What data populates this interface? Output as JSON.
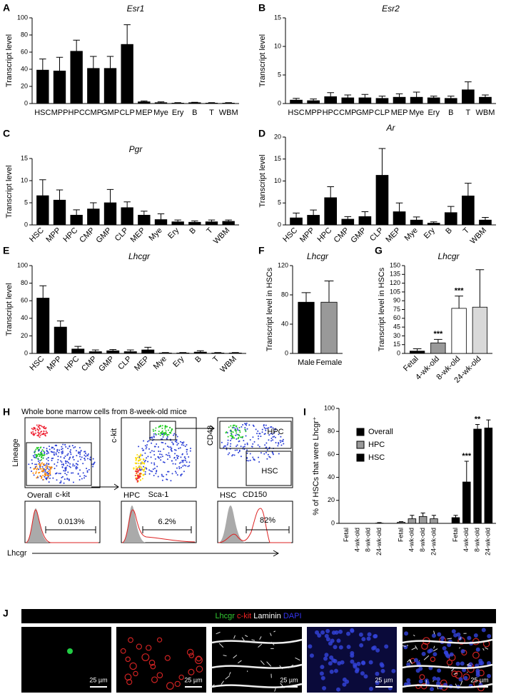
{
  "chart_data": [
    {
      "type": "bar",
      "panel": "A",
      "title": "Esr1",
      "y_label": "Transcript level",
      "color": "#000000",
      "categories": [
        "HSC",
        "MPP",
        "HPC",
        "CMP",
        "GMP",
        "CLP",
        "MEP",
        "Mye",
        "Ery",
        "B",
        "T",
        "WBM"
      ],
      "values": [
        39,
        38,
        61,
        41,
        41,
        69,
        2,
        1,
        0.5,
        1,
        0.5,
        0.5
      ],
      "errors": [
        13,
        16,
        13,
        14,
        14,
        23,
        1,
        1,
        0.5,
        0.5,
        0.5,
        0.5
      ],
      "ylim": [
        0,
        100
      ],
      "yticks": [
        0,
        20,
        40,
        60,
        80,
        100
      ]
    },
    {
      "type": "bar",
      "panel": "B",
      "title": "Esr2",
      "y_label": "Transcript level",
      "color": "#000000",
      "categories": [
        "HSC",
        "MPP",
        "HPC",
        "CMP",
        "GMP",
        "CLP",
        "MEP",
        "Mye",
        "Ery",
        "B",
        "T",
        "WBM"
      ],
      "values": [
        0.6,
        0.5,
        1.2,
        1.0,
        1.0,
        0.9,
        1.1,
        1.1,
        1.0,
        0.9,
        2.4,
        1.1
      ],
      "errors": [
        0.3,
        0.3,
        0.7,
        0.5,
        0.6,
        0.4,
        0.6,
        0.9,
        0.3,
        0.4,
        1.4,
        0.4
      ],
      "ylim": [
        0,
        15
      ],
      "yticks": [
        0,
        5,
        10,
        15
      ]
    },
    {
      "type": "bar",
      "panel": "C",
      "title": "Pgr",
      "y_label": "Transcript level",
      "color": "#000000",
      "categories": [
        "HSC",
        "MPP",
        "HPC",
        "CMP",
        "GMP",
        "CLP",
        "MEP",
        "Mye",
        "Ery",
        "B",
        "T",
        "WBM"
      ],
      "values": [
        6.6,
        5.6,
        2.2,
        3.6,
        5.0,
        3.9,
        2.2,
        1.2,
        0.7,
        0.6,
        0.7,
        0.8
      ],
      "errors": [
        3.6,
        2.3,
        1.2,
        1.4,
        3.0,
        1.3,
        0.9,
        1.3,
        0.4,
        0.3,
        0.4,
        0.3
      ],
      "ylim": [
        0,
        15
      ],
      "yticks": [
        0,
        5,
        10,
        15
      ]
    },
    {
      "type": "bar",
      "panel": "D",
      "title": "Ar",
      "y_label": "Transcript level",
      "color": "#000000",
      "categories": [
        "HSC",
        "MPP",
        "HPC",
        "CMP",
        "GMP",
        "CLP",
        "MEP",
        "Mye",
        "Ery",
        "B",
        "T",
        "WBM"
      ],
      "values": [
        1.6,
        2.2,
        6.2,
        1.3,
        1.9,
        11.3,
        3.0,
        1.1,
        0.4,
        2.8,
        6.6,
        1.1
      ],
      "errors": [
        1.1,
        1.2,
        2.5,
        0.6,
        1.1,
        6.1,
        2.0,
        0.7,
        0.3,
        1.4,
        2.9,
        0.6
      ],
      "ylim": [
        0,
        20
      ],
      "yticks": [
        0,
        5,
        10,
        15,
        20
      ]
    },
    {
      "type": "bar",
      "panel": "E",
      "title": "Lhcgr",
      "y_label": "Transcript level",
      "color": "#000000",
      "categories": [
        "HSC",
        "MPP",
        "HPC",
        "CMP",
        "GMP",
        "CLP",
        "MEP",
        "Mye",
        "Ery",
        "B",
        "T",
        "WBM"
      ],
      "values": [
        63,
        30,
        5,
        2,
        3,
        2,
        4,
        0.5,
        0.5,
        1.5,
        0.5,
        0.5
      ],
      "errors": [
        14,
        7,
        3,
        2,
        1.5,
        2,
        3,
        0.5,
        0.5,
        1.5,
        0.5,
        0.5
      ],
      "ylim": [
        0,
        100
      ],
      "yticks": [
        0,
        20,
        40,
        60,
        80,
        100
      ]
    },
    {
      "type": "bar",
      "panel": "F",
      "title": "Lhcgr",
      "y_label": "Transcript level in HSCs",
      "categories": [
        "Male",
        "Female"
      ],
      "colors": [
        "#000000",
        "#999999"
      ],
      "values": [
        70,
        70
      ],
      "errors": [
        13,
        29
      ],
      "ylim": [
        0,
        120
      ],
      "yticks": [
        0,
        40,
        80,
        120
      ]
    },
    {
      "type": "bar",
      "panel": "G",
      "title": "Lhcgr",
      "y_label": "Transcript level in HSCs",
      "categories": [
        "Fetal",
        "4-wk-old",
        "8-wk-old",
        "24-wk-old"
      ],
      "colors": [
        "#000000",
        "#999999",
        "#ffffff",
        "#d9d9d9"
      ],
      "values": [
        4,
        18,
        77,
        79
      ],
      "errors": [
        4,
        6,
        21,
        64
      ],
      "ylim": [
        0,
        150
      ],
      "yticks": [
        0,
        15,
        30,
        45,
        60,
        75,
        90,
        105,
        120,
        135,
        150
      ],
      "annotations": [
        {
          "text": "***",
          "category": "4-wk-old"
        },
        {
          "text": "***",
          "category": "8-wk-old"
        }
      ]
    },
    {
      "type": "bar",
      "panel": "I",
      "y_label": "% of HSCs that were Lhcgr⁺",
      "categories": [
        "Fetal",
        "4-wk-old",
        "8-wk-old",
        "24-wk-old"
      ],
      "series": [
        {
          "name": "Overall",
          "color": "#000000",
          "values": [
            0,
            0,
            0,
            0.2
          ],
          "errors": [
            0,
            0,
            0,
            0.5
          ]
        },
        {
          "name": "HPC",
          "color": "#999999",
          "values": [
            1,
            4,
            6,
            4
          ],
          "errors": [
            0.5,
            3,
            3,
            3
          ]
        },
        {
          "name": "HSC",
          "color": "#000000",
          "values": [
            5,
            36,
            82,
            83
          ],
          "errors": [
            2,
            18,
            4,
            7
          ]
        }
      ],
      "ylim": [
        0,
        100
      ],
      "yticks": [
        0,
        20,
        40,
        60,
        80,
        100
      ],
      "annotations": [
        {
          "text": "***",
          "series": "HSC",
          "category": "4-wk-old"
        },
        {
          "text": "**",
          "series": "HSC",
          "category": "8-wk-old"
        }
      ]
    }
  ],
  "flow": {
    "panel": "H",
    "title": "Whole bone marrow cells from 8-week-old mice",
    "plots": [
      {
        "y": "Lineage",
        "x": "c-kit"
      },
      {
        "y": "c-kit",
        "x": "Sca-1"
      },
      {
        "y": "CD48",
        "x": "CD150",
        "gates": [
          "HPC",
          "HSC"
        ]
      }
    ],
    "histograms": [
      {
        "name": "Overall",
        "percent": "0.013%"
      },
      {
        "name": "HPC",
        "percent": "6.2%"
      },
      {
        "name": "HSC",
        "percent": "82%"
      }
    ],
    "x_label": "Lhcgr"
  },
  "microscopy": {
    "panel": "J",
    "channels": [
      "Lhcgr",
      "c-kit",
      "Laminin",
      "DAPI"
    ],
    "scale_bars": [
      "25 µm",
      "25 µm",
      "25 µm",
      "25 µm",
      "25 µm"
    ]
  }
}
